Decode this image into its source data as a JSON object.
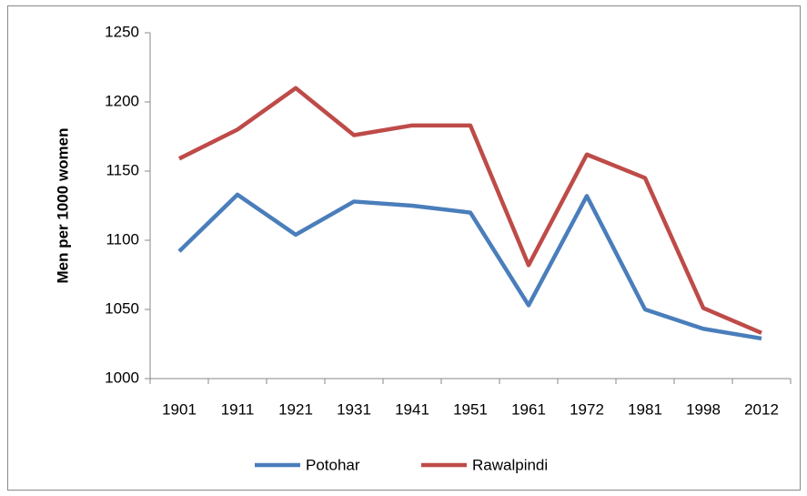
{
  "chart_data": {
    "type": "line",
    "y_label": "Men per 1000 women",
    "categories": [
      "1901",
      "1911",
      "1921",
      "1931",
      "1941",
      "1951",
      "1961",
      "1972",
      "1981",
      "1998",
      "2012"
    ],
    "series": [
      {
        "name": "Potohar",
        "color": "#4a7ebb",
        "values": [
          1092,
          1133,
          1104,
          1128,
          1125,
          1120,
          1053,
          1132,
          1050,
          1036,
          1029
        ]
      },
      {
        "name": "Rawalpindi",
        "color": "#be4b48",
        "values": [
          1159,
          1180,
          1210,
          1176,
          1183,
          1183,
          1082,
          1162,
          1145,
          1051,
          1033
        ]
      }
    ],
    "ylim": [
      1000,
      1250
    ],
    "yticks": [
      1000,
      1050,
      1100,
      1150,
      1200,
      1250
    ],
    "grid": false,
    "legend": "bottom"
  }
}
